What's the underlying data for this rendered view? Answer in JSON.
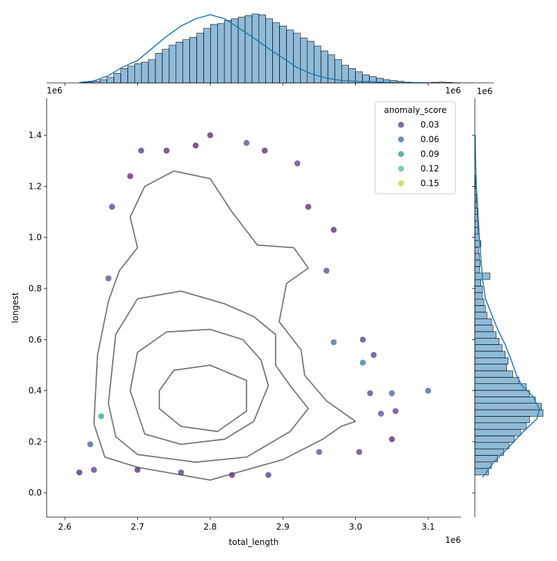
{
  "chart_data": {
    "type": "scatter",
    "title": "",
    "xlabel": "total_length",
    "ylabel": "longest",
    "x_scale_label": "1e6",
    "y_scale_label": "1e6",
    "xlim": [
      2.575,
      3.145
    ],
    "ylim": [
      -0.095,
      1.545
    ],
    "x_ticks": [
      2.6,
      2.7,
      2.8,
      2.9,
      3.0,
      3.1
    ],
    "x_tick_labels": [
      "2.6",
      "2.7",
      "2.8",
      "2.9",
      "3.0",
      "3.1"
    ],
    "y_ticks": [
      0.0,
      0.2,
      0.4,
      0.6,
      0.8,
      1.0,
      1.2,
      1.4
    ],
    "y_tick_labels": [
      "0.0",
      "0.2",
      "0.4",
      "0.6",
      "0.8",
      "1.0",
      "1.2",
      "1.4"
    ],
    "grid": false,
    "legend": {
      "title": "anomaly_score",
      "placement": "top-right",
      "entries": [
        {
          "label": "0.03",
          "value": 0.03
        },
        {
          "label": "0.06",
          "value": 0.06
        },
        {
          "label": "0.09",
          "value": 0.09
        },
        {
          "label": "0.12",
          "value": 0.12
        },
        {
          "label": "0.15",
          "value": 0.15
        }
      ]
    },
    "colormap": "viridis",
    "hue_range": [
      0.01,
      0.17
    ],
    "marker_alpha": 0.7,
    "points": [
      {
        "x": 2.62,
        "y": 0.08,
        "hue": 0.02
      },
      {
        "x": 2.635,
        "y": 0.19,
        "hue": 0.05
      },
      {
        "x": 2.64,
        "y": 0.09,
        "hue": 0.03
      },
      {
        "x": 2.65,
        "y": 0.3,
        "hue": 0.1
      },
      {
        "x": 2.66,
        "y": 0.84,
        "hue": 0.04
      },
      {
        "x": 2.665,
        "y": 1.12,
        "hue": 0.03
      },
      {
        "x": 2.69,
        "y": 1.24,
        "hue": 0.02
      },
      {
        "x": 2.705,
        "y": 1.34,
        "hue": 0.03
      },
      {
        "x": 2.74,
        "y": 1.34,
        "hue": 0.02
      },
      {
        "x": 2.78,
        "y": 1.36,
        "hue": 0.02
      },
      {
        "x": 2.8,
        "y": 1.4,
        "hue": 0.02
      },
      {
        "x": 2.85,
        "y": 1.37,
        "hue": 0.04
      },
      {
        "x": 2.875,
        "y": 1.34,
        "hue": 0.02
      },
      {
        "x": 2.92,
        "y": 1.29,
        "hue": 0.03
      },
      {
        "x": 2.935,
        "y": 1.12,
        "hue": 0.02
      },
      {
        "x": 2.97,
        "y": 1.03,
        "hue": 0.02
      },
      {
        "x": 2.96,
        "y": 0.87,
        "hue": 0.04
      },
      {
        "x": 2.97,
        "y": 0.59,
        "hue": 0.06
      },
      {
        "x": 3.01,
        "y": 0.6,
        "hue": 0.03
      },
      {
        "x": 3.01,
        "y": 0.51,
        "hue": 0.07
      },
      {
        "x": 3.02,
        "y": 0.39,
        "hue": 0.04
      },
      {
        "x": 3.025,
        "y": 0.54,
        "hue": 0.03
      },
      {
        "x": 3.05,
        "y": 0.39,
        "hue": 0.05
      },
      {
        "x": 3.055,
        "y": 0.32,
        "hue": 0.03
      },
      {
        "x": 3.05,
        "y": 0.21,
        "hue": 0.02
      },
      {
        "x": 3.035,
        "y": 0.31,
        "hue": 0.04
      },
      {
        "x": 3.005,
        "y": 0.16,
        "hue": 0.03
      },
      {
        "x": 3.1,
        "y": 0.4,
        "hue": 0.05
      },
      {
        "x": 2.95,
        "y": 0.16,
        "hue": 0.04
      },
      {
        "x": 2.88,
        "y": 0.07,
        "hue": 0.03
      },
      {
        "x": 2.83,
        "y": 0.07,
        "hue": 0.02
      },
      {
        "x": 2.76,
        "y": 0.08,
        "hue": 0.03
      },
      {
        "x": 2.7,
        "y": 0.09,
        "hue": 0.02
      }
    ],
    "density_contours": [
      {
        "level": 1,
        "points": [
          [
            2.64,
            0.27
          ],
          [
            2.645,
            0.54
          ],
          [
            2.66,
            0.75
          ],
          [
            2.675,
            0.87
          ],
          [
            2.7,
            0.96
          ],
          [
            2.69,
            1.08
          ],
          [
            2.71,
            1.2
          ],
          [
            2.75,
            1.26
          ],
          [
            2.8,
            1.23
          ],
          [
            2.83,
            1.1
          ],
          [
            2.865,
            0.97
          ],
          [
            2.915,
            0.96
          ],
          [
            2.935,
            0.88
          ],
          [
            2.905,
            0.82
          ],
          [
            2.895,
            0.67
          ],
          [
            2.925,
            0.56
          ],
          [
            2.93,
            0.46
          ],
          [
            2.96,
            0.36
          ],
          [
            2.985,
            0.31
          ],
          [
            3.0,
            0.28
          ],
          [
            2.98,
            0.26
          ],
          [
            2.955,
            0.21
          ],
          [
            2.9,
            0.13
          ],
          [
            2.8,
            0.05
          ],
          [
            2.7,
            0.1
          ],
          [
            2.655,
            0.14
          ],
          [
            2.64,
            0.27
          ]
        ]
      },
      {
        "level": 2,
        "points": [
          [
            2.66,
            0.35
          ],
          [
            2.67,
            0.62
          ],
          [
            2.7,
            0.76
          ],
          [
            2.76,
            0.79
          ],
          [
            2.82,
            0.74
          ],
          [
            2.86,
            0.69
          ],
          [
            2.89,
            0.62
          ],
          [
            2.89,
            0.5
          ],
          [
            2.91,
            0.42
          ],
          [
            2.935,
            0.33
          ],
          [
            2.91,
            0.24
          ],
          [
            2.85,
            0.14
          ],
          [
            2.78,
            0.12
          ],
          [
            2.7,
            0.15
          ],
          [
            2.67,
            0.22
          ],
          [
            2.66,
            0.35
          ]
        ]
      },
      {
        "level": 3,
        "points": [
          [
            2.69,
            0.4
          ],
          [
            2.7,
            0.55
          ],
          [
            2.74,
            0.63
          ],
          [
            2.8,
            0.64
          ],
          [
            2.845,
            0.6
          ],
          [
            2.87,
            0.52
          ],
          [
            2.88,
            0.42
          ],
          [
            2.86,
            0.28
          ],
          [
            2.82,
            0.21
          ],
          [
            2.76,
            0.19
          ],
          [
            2.71,
            0.23
          ],
          [
            2.69,
            0.4
          ]
        ]
      },
      {
        "level": 4,
        "points": [
          [
            2.73,
            0.4
          ],
          [
            2.75,
            0.48
          ],
          [
            2.8,
            0.5
          ],
          [
            2.85,
            0.44
          ],
          [
            2.85,
            0.32
          ],
          [
            2.81,
            0.24
          ],
          [
            2.76,
            0.26
          ],
          [
            2.73,
            0.33
          ],
          [
            2.73,
            0.4
          ]
        ]
      }
    ],
    "marginal_x": {
      "bin_edges_start": 2.62,
      "bin_width": 0.0095,
      "counts": [
        0.5,
        1,
        2,
        4,
        7,
        12,
        18,
        21,
        24,
        26,
        29,
        37,
        42,
        47,
        51,
        54,
        57,
        62,
        68,
        73,
        74,
        78,
        80,
        82,
        84,
        86,
        85,
        80,
        75,
        71,
        66,
        62,
        56,
        52,
        46,
        40,
        35,
        29,
        22,
        18,
        14,
        10,
        8,
        6,
        4,
        3,
        2,
        1,
        0.7,
        0.4,
        0.3,
        0.8,
        1,
        0.6,
        0.3,
        0.2,
        0.2,
        0.1,
        0.1,
        0.1
      ],
      "kde_x": [
        2.62,
        2.64,
        2.66,
        2.68,
        2.7,
        2.72,
        2.74,
        2.76,
        2.78,
        2.8,
        2.82,
        2.84,
        2.86,
        2.88,
        2.9,
        2.92,
        2.94,
        2.96,
        2.98,
        3.0,
        3.02,
        3.05,
        3.1
      ],
      "kde_y": [
        0.5,
        2.5,
        9,
        20,
        28,
        43,
        58,
        71,
        80,
        85,
        80,
        68,
        56,
        43,
        31,
        19,
        11,
        6,
        3,
        2,
        1.5,
        0.5,
        0.2
      ]
    },
    "marginal_y": {
      "bin_edges_start": 0.07,
      "bin_width": 0.0255,
      "counts": [
        18,
        22,
        30,
        38,
        45,
        52,
        60,
        68,
        72,
        90,
        88,
        80,
        72,
        68,
        58,
        50,
        42,
        44,
        40,
        36,
        32,
        28,
        24,
        22,
        16,
        14,
        12,
        10,
        10,
        8,
        20,
        6,
        7,
        6,
        5,
        8,
        6,
        4,
        4,
        3,
        3,
        2,
        2,
        2,
        1,
        1
      ]
    },
    "marginal_y_kde": {
      "y": [
        0.06,
        0.12,
        0.18,
        0.24,
        0.29,
        0.33,
        0.38,
        0.42,
        0.46,
        0.52,
        0.58,
        0.64,
        0.7,
        0.76,
        0.84,
        0.92,
        1.0,
        1.1,
        1.2,
        1.3,
        1.4
      ],
      "count": [
        10,
        25,
        45,
        64,
        82,
        85,
        76,
        62,
        55,
        48,
        40,
        30,
        22,
        14,
        10,
        8,
        6,
        4,
        2,
        1,
        0.5
      ]
    }
  }
}
